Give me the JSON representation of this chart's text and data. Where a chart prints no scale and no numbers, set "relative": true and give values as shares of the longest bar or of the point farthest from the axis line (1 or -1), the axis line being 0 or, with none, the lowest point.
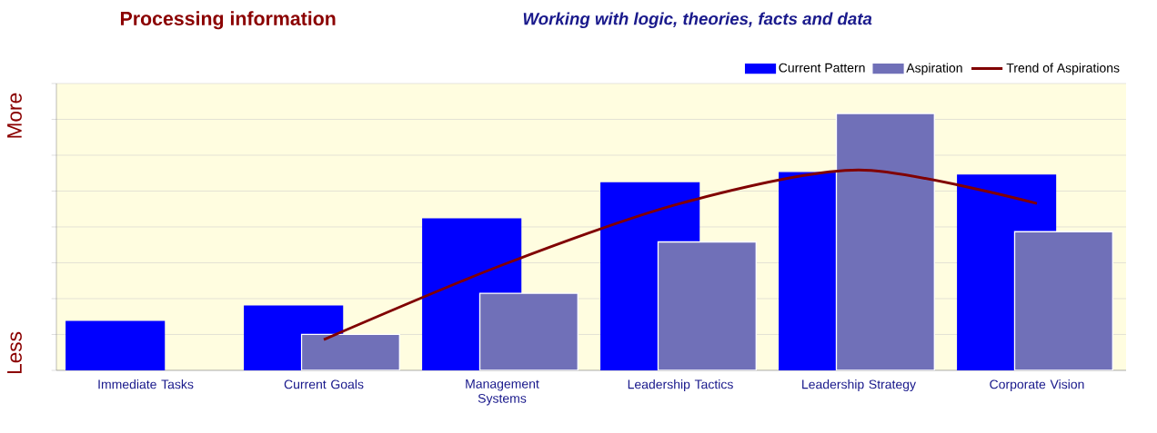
{
  "chart_data": {
    "type": "bar",
    "title": "Processing information",
    "subtitle": "Working with logic, theories, facts and data",
    "annotations": [
      "Less",
      "More"
    ],
    "categories": [
      "Immediate Tasks",
      "Current  Goals",
      "Management Systems",
      "Leadership Tactics",
      "Leadership Strategy",
      "Corporate Vision"
    ],
    "relative": true,
    "grid": "y",
    "legend": "top right",
    "series": [
      {
        "name": "Current Pattern",
        "color": "#0000ff",
        "values": [
          0.19,
          0.25,
          0.59,
          0.73,
          0.77,
          0.76
        ]
      },
      {
        "name": "Aspiration",
        "color": "#7070b8",
        "values": [
          null,
          0.14,
          0.3,
          0.5,
          1,
          0.54
        ]
      },
      {
        "name": "Trend of Aspirations",
        "type": "line",
        "color": "#800000",
        "values": [
          null,
          0.12,
          0.41,
          0.65,
          0.78,
          0.65
        ]
      }
    ]
  }
}
